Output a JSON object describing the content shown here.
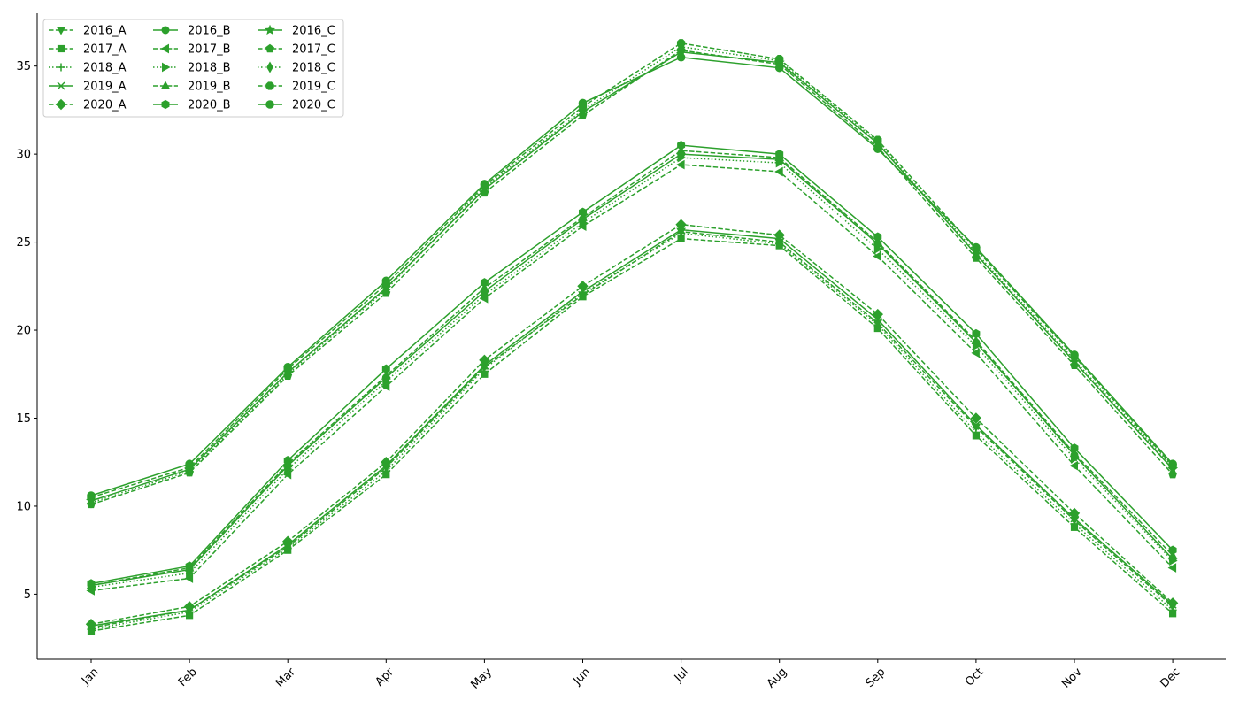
{
  "chart_data": {
    "type": "line",
    "title": "",
    "xlabel": "",
    "ylabel": "",
    "categories": [
      "Jan",
      "Feb",
      "Mar",
      "Apr",
      "May",
      "Jun",
      "Jul",
      "Aug",
      "Sep",
      "Oct",
      "Nov",
      "Dec"
    ],
    "ylim": [
      1.3,
      38.0
    ],
    "yticks": [
      5,
      10,
      15,
      20,
      25,
      30,
      35
    ],
    "grid": false,
    "legend_position": "top-left",
    "legend_columns": 3,
    "line_color": "#2ca02c",
    "series": [
      {
        "name": "2016_A",
        "dash": "dashed",
        "marker": "triangle-down",
        "values": [
          3.1,
          4.1,
          7.7,
          12.2,
          17.9,
          22.0,
          25.6,
          25.0,
          20.4,
          14.5,
          9.2,
          4.3
        ]
      },
      {
        "name": "2017_A",
        "dash": "dashed",
        "marker": "square",
        "values": [
          2.9,
          3.8,
          7.5,
          11.8,
          17.5,
          21.9,
          25.2,
          24.8,
          20.1,
          14.0,
          8.8,
          3.9
        ]
      },
      {
        "name": "2018_A",
        "dash": "dotted",
        "marker": "plus",
        "values": [
          3.0,
          4.0,
          7.6,
          12.0,
          17.8,
          22.1,
          25.5,
          24.9,
          20.3,
          14.2,
          9.0,
          4.1
        ]
      },
      {
        "name": "2019_A",
        "dash": "solid",
        "marker": "x",
        "values": [
          3.2,
          4.1,
          7.8,
          12.3,
          18.0,
          22.2,
          25.7,
          25.2,
          20.6,
          14.6,
          9.3,
          4.4
        ]
      },
      {
        "name": "2020_A",
        "dash": "dashed",
        "marker": "diamond",
        "values": [
          3.3,
          4.3,
          8.0,
          12.5,
          18.3,
          22.5,
          26.0,
          25.4,
          20.9,
          15.0,
          9.6,
          4.5
        ]
      },
      {
        "name": "2016_B",
        "dash": "solid",
        "marker": "circle",
        "values": [
          5.5,
          6.4,
          12.3,
          17.3,
          22.2,
          26.3,
          30.0,
          29.7,
          24.9,
          19.3,
          12.9,
          7.0
        ]
      },
      {
        "name": "2017_B",
        "dash": "dashed",
        "marker": "triangle-left",
        "values": [
          5.2,
          5.9,
          11.8,
          16.8,
          21.8,
          25.9,
          29.4,
          29.0,
          24.2,
          18.7,
          12.3,
          6.5
        ]
      },
      {
        "name": "2018_B",
        "dash": "dotted",
        "marker": "triangle-right",
        "values": [
          5.4,
          6.2,
          12.1,
          17.1,
          22.0,
          26.1,
          29.8,
          29.5,
          24.6,
          19.1,
          12.7,
          6.9
        ]
      },
      {
        "name": "2019_B",
        "dash": "dashed",
        "marker": "triangle-up",
        "values": [
          5.5,
          6.5,
          12.4,
          17.4,
          22.4,
          26.4,
          30.2,
          29.8,
          25.0,
          19.4,
          13.0,
          7.2
        ]
      },
      {
        "name": "2020_B",
        "dash": "solid",
        "marker": "hexagon",
        "values": [
          5.6,
          6.6,
          12.6,
          17.8,
          22.7,
          26.7,
          30.5,
          30.0,
          25.3,
          19.8,
          13.3,
          7.5
        ]
      },
      {
        "name": "2016_C",
        "dash": "solid",
        "marker": "star",
        "values": [
          10.3,
          12.1,
          17.6,
          22.4,
          28.0,
          32.4,
          35.8,
          35.2,
          30.6,
          24.3,
          18.2,
          12.1
        ]
      },
      {
        "name": "2017_C",
        "dash": "dashed",
        "marker": "pentagon",
        "values": [
          10.1,
          11.9,
          17.4,
          22.1,
          27.8,
          32.2,
          35.9,
          35.1,
          30.4,
          24.1,
          18.0,
          11.8
        ]
      },
      {
        "name": "2018_C",
        "dash": "dotted",
        "marker": "thin-diamond",
        "values": [
          10.2,
          12.0,
          17.5,
          22.3,
          28.1,
          32.5,
          36.1,
          35.3,
          30.7,
          24.4,
          18.3,
          12.2
        ]
      },
      {
        "name": "2019_C",
        "dash": "dashed",
        "marker": "octagon",
        "values": [
          10.5,
          12.2,
          17.8,
          22.6,
          28.2,
          32.7,
          36.3,
          35.4,
          30.8,
          24.6,
          18.5,
          12.3
        ]
      },
      {
        "name": "2020_C",
        "dash": "solid",
        "marker": "octagon-filled",
        "values": [
          10.6,
          12.4,
          17.9,
          22.8,
          28.3,
          32.9,
          35.5,
          34.9,
          30.3,
          24.7,
          18.6,
          12.4
        ]
      }
    ]
  }
}
